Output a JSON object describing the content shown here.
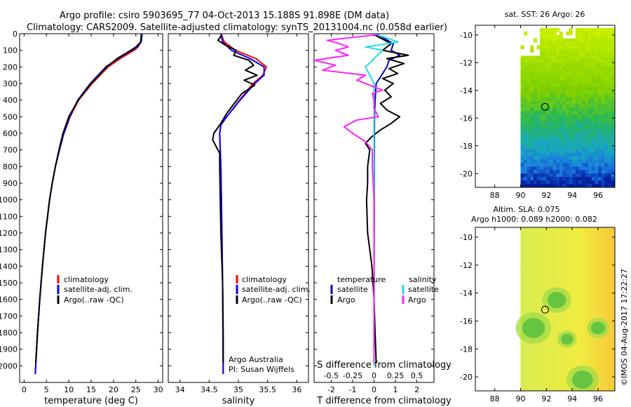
{
  "title": {
    "line1": "Argo profile: csiro 5903695_77 04-Oct-2013 15.188S 91.898E (DM data)",
    "line2": "Climatology: CARS2009. Satellite-adjusted climatology: synTS_20131004.nc (0.058d earlier)"
  },
  "colors": {
    "climatology": "#ff0000",
    "satellite_adj": "#0000ff",
    "argo": "#000000",
    "diff_temp_sat": "#0000cc",
    "diff_sal_sat": "#22dddd",
    "diff_sal_argo": "#ff22ff"
  },
  "depth_axis": {
    "min": 0,
    "max": 2100,
    "ticks": [
      0,
      100,
      200,
      300,
      400,
      500,
      600,
      700,
      800,
      900,
      1000,
      1100,
      1200,
      1300,
      1400,
      1500,
      1600,
      1700,
      1800,
      1900,
      2000
    ]
  },
  "legend": {
    "climatology": "climatology",
    "satellite": "satellite-adj. clim.",
    "argo": "Argo(..raw -QC)"
  },
  "panel3_legend": {
    "temperature": "temperature",
    "salinity": "salinity",
    "satellite": "satellite",
    "argo": "Argo"
  },
  "credits": {
    "line1": "Argo Australia",
    "line2": "PI: Susan Wijffels"
  },
  "right_panels": {
    "sst_title": "sat. SST: 26 Argo: 26",
    "sla_title1": "Altim. SLA: 0.075",
    "sla_title2": "Argo h1000: 0.089 h2000: 0.082",
    "lat_ticks": [
      -10,
      -12,
      -14,
      -16,
      -18,
      -20
    ],
    "lon_ticks": [
      88,
      90,
      92,
      94,
      96
    ],
    "argo_lat": -15.188,
    "argo_lon": 91.898,
    "timestamp": "©IMOS 04-Aug-2017 17:22:27"
  },
  "chart_data": [
    {
      "type": "line",
      "xlabel": "temperature (deg C)",
      "ylabel": "",
      "xlim": [
        -1,
        31
      ],
      "ylim": [
        2100,
        0
      ],
      "xticks": [
        0,
        5,
        10,
        15,
        20,
        25,
        30
      ],
      "series": [
        {
          "name": "climatology",
          "depth": [
            0,
            50,
            80,
            100,
            150,
            200,
            300,
            400,
            500,
            600,
            700,
            800,
            900,
            1000,
            1200,
            1400,
            1600,
            1800,
            2000,
            2050
          ],
          "values": [
            26.3,
            26.1,
            25.5,
            24.6,
            21.5,
            18.8,
            15.2,
            12.2,
            10.3,
            8.9,
            7.9,
            7.0,
            6.3,
            5.7,
            4.8,
            4.1,
            3.5,
            3.0,
            2.6,
            2.5
          ]
        },
        {
          "name": "satellite-adj. clim.",
          "depth": [
            0,
            50,
            80,
            100,
            150,
            200,
            300,
            400,
            500,
            600,
            700,
            800,
            900,
            1000,
            1200,
            1400,
            1600,
            1800,
            2000,
            2050
          ],
          "values": [
            26.4,
            26.2,
            25.3,
            24.1,
            21.0,
            18.3,
            14.8,
            12.0,
            10.2,
            8.9,
            7.9,
            7.0,
            6.3,
            5.7,
            4.8,
            4.1,
            3.5,
            3.0,
            2.6,
            2.5
          ]
        },
        {
          "name": "Argo(..raw -QC)",
          "depth": [
            5,
            50,
            80,
            100,
            150,
            200,
            300,
            400,
            500,
            600,
            700,
            800,
            900,
            1000,
            1200,
            1400,
            1600,
            1800,
            1980
          ],
          "values": [
            26.2,
            26.1,
            25.0,
            23.9,
            20.8,
            18.5,
            15.0,
            12.1,
            10.0,
            8.7,
            7.8,
            7.0,
            6.3,
            5.7,
            4.8,
            4.1,
            3.5,
            3.0,
            2.6
          ]
        }
      ]
    },
    {
      "type": "line",
      "xlabel": "salinity",
      "xlim": [
        33.8,
        36.2
      ],
      "ylim": [
        2100,
        0
      ],
      "xticks": [
        34,
        34.5,
        35,
        35.5,
        36
      ],
      "series": [
        {
          "name": "climatology",
          "depth": [
            0,
            50,
            100,
            150,
            200,
            250,
            300,
            400,
            500,
            550,
            600,
            700,
            800,
            1000,
            1500,
            2000,
            2050
          ],
          "values": [
            34.7,
            34.76,
            34.95,
            35.3,
            35.48,
            35.42,
            35.25,
            35.02,
            34.8,
            34.7,
            34.68,
            34.69,
            34.7,
            34.71,
            34.73,
            34.74,
            34.74
          ]
        },
        {
          "name": "satellite-adj. clim.",
          "depth": [
            0,
            50,
            100,
            150,
            200,
            250,
            300,
            400,
            500,
            550,
            600,
            700,
            800,
            1000,
            1500,
            2000,
            2050
          ],
          "values": [
            34.7,
            34.73,
            34.88,
            35.2,
            35.44,
            35.44,
            35.28,
            35.03,
            34.8,
            34.7,
            34.68,
            34.69,
            34.7,
            34.71,
            34.73,
            34.74,
            34.74
          ]
        },
        {
          "name": "Argo(..raw -QC)",
          "depth": [
            5,
            40,
            70,
            100,
            130,
            160,
            190,
            220,
            250,
            280,
            310,
            360,
            420,
            480,
            540,
            600,
            640,
            680,
            720,
            800,
            1000,
            1200,
            1500,
            1800,
            1980
          ],
          "values": [
            34.72,
            34.65,
            34.78,
            34.96,
            34.92,
            35.18,
            35.26,
            35.12,
            35.32,
            35.1,
            35.28,
            35.06,
            34.93,
            34.8,
            34.7,
            34.58,
            34.56,
            34.62,
            34.68,
            34.68,
            34.69,
            34.7,
            34.73,
            34.74,
            34.74
          ]
        }
      ]
    },
    {
      "type": "line",
      "xlabel": "T difference from climatology",
      "xlabel_top": "S difference from climatology",
      "xlim": [
        -2.8,
        2.8
      ],
      "ylim": [
        2100,
        0
      ],
      "xticks": [
        -2,
        -1,
        0,
        1,
        2
      ],
      "xticks_top": [
        -0.5,
        -0.25,
        0,
        0.25,
        0.5
      ],
      "series": [
        {
          "name": "temperature satellite",
          "depth": [
            0,
            60,
            100,
            130,
            160,
            200,
            260,
            300,
            400,
            500,
            1000,
            2000
          ],
          "values": [
            0.1,
            0.9,
            0.8,
            1.2,
            0.7,
            0.6,
            0.3,
            0.1,
            0.05,
            0.02,
            0.01,
            0.0
          ]
        },
        {
          "name": "temperature Argo",
          "depth": [
            5,
            60,
            100,
            130,
            150,
            180,
            210,
            240,
            270,
            300,
            340,
            380,
            420,
            460,
            500,
            540,
            580,
            620,
            660,
            700,
            800,
            900,
            1000,
            1200,
            1400,
            1600,
            1800,
            1980
          ],
          "values": [
            0.0,
            0.8,
            0.4,
            1.6,
            0.6,
            1.4,
            0.7,
            1.1,
            0.4,
            0.9,
            0.5,
            0.8,
            0.3,
            0.6,
            1.2,
            0.8,
            0.3,
            -0.1,
            -0.4,
            -0.2,
            -0.3,
            -0.3,
            -0.35,
            -0.3,
            -0.1,
            0.0,
            0.05,
            0.1
          ]
        },
        {
          "name": "salinity satellite",
          "depth": [
            0,
            50,
            80,
            100,
            150,
            200,
            300,
            400,
            500,
            600,
            800,
            1000,
            1500,
            2000
          ],
          "values": [
            0.0,
            0.28,
            -0.1,
            0.1,
            0.0,
            -0.1,
            0.0,
            0.0,
            0.0,
            0.0,
            0.0,
            0.0,
            0.0,
            0.0
          ]
        },
        {
          "name": "salinity Argo",
          "depth": [
            5,
            40,
            60,
            80,
            100,
            130,
            160,
            190,
            220,
            250,
            280,
            310,
            340,
            360,
            400,
            450,
            500,
            520,
            560,
            600,
            650,
            700,
            800,
            1000,
            1500,
            1980
          ],
          "values": [
            0.05,
            -0.55,
            -0.4,
            -0.3,
            -0.45,
            -0.3,
            -0.7,
            -0.45,
            -0.6,
            -0.1,
            -0.2,
            -0.05,
            0.1,
            -0.02,
            0.0,
            0.0,
            0.05,
            -0.2,
            -0.35,
            -0.25,
            -0.1,
            -0.02,
            -0.02,
            0.0,
            0.0,
            0.0
          ]
        }
      ]
    },
    {
      "type": "heatmap",
      "title": "sat. SST: 26 Argo: 26",
      "xlim": [
        86.5,
        97.3
      ],
      "ylim": [
        -21.0,
        -9.3
      ],
      "data_lon_range": [
        90,
        97
      ],
      "data_lat_range": [
        -21,
        -9.5
      ],
      "values_description": "SST decreasing southward",
      "scale": [
        [
          "-9.5",
          "#c8f000"
        ],
        [
          "-14",
          "#7ed000"
        ],
        [
          "-16",
          "#28b858"
        ],
        [
          "-18",
          "#18a8c0"
        ],
        [
          "-19.5",
          "#1a78e0"
        ],
        [
          "-20.6",
          "#0020a0"
        ]
      ]
    },
    {
      "type": "heatmap",
      "title": "Altim. SLA: 0.075",
      "xlim": [
        86.5,
        97.3
      ],
      "ylim": [
        -21.0,
        -9.3
      ],
      "data_lon_range": [
        90,
        97
      ],
      "data_lat_range": [
        -21,
        -9.3
      ],
      "blobs": [
        {
          "lon": 92.8,
          "lat": -14.5,
          "r": 0.9
        },
        {
          "lon": 91.0,
          "lat": -16.5,
          "r": 1.1
        },
        {
          "lon": 94.8,
          "lat": -20.2,
          "r": 1.0
        },
        {
          "lon": 93.6,
          "lat": -17.3,
          "r": 0.6
        },
        {
          "lon": 96.0,
          "lat": -16.5,
          "r": 0.7
        }
      ]
    }
  ]
}
